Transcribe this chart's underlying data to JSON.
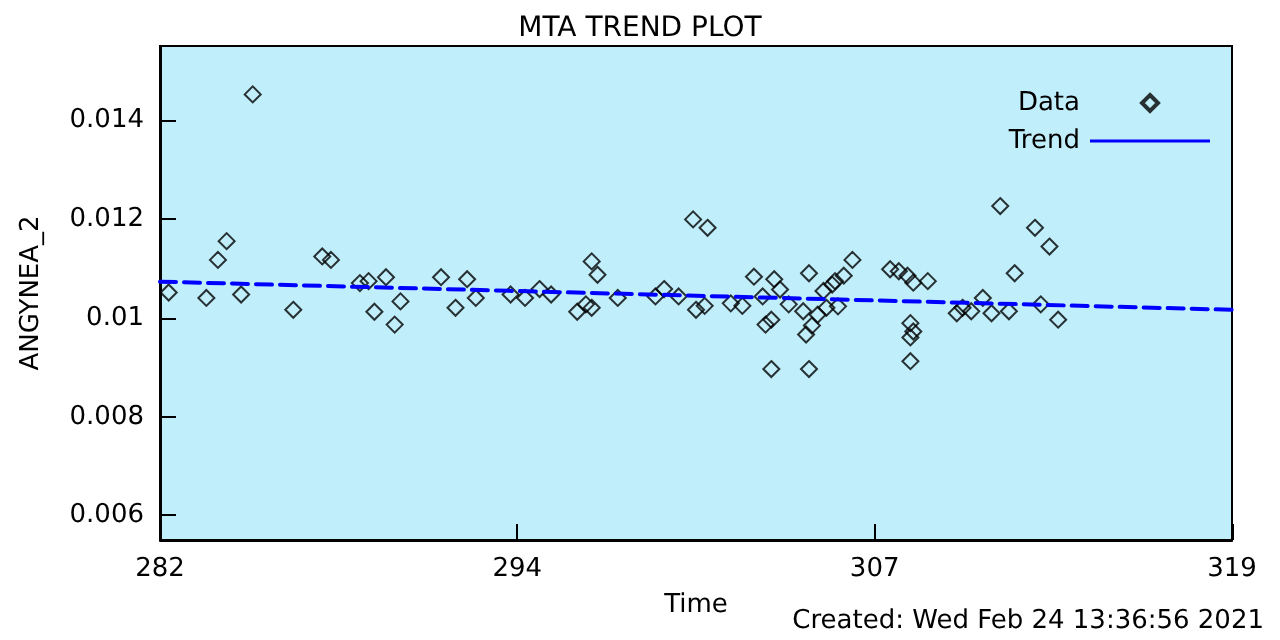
{
  "chart_data": {
    "type": "scatter",
    "title": "MTA TREND PLOT",
    "xlabel": "Time",
    "ylabel": "ANGYNEA_2",
    "annotations": [
      "Created: Wed Feb 24 13:36:56 2021"
    ],
    "xlim": [
      282,
      319
    ],
    "xticks": [
      282,
      {
        "value": 294.333,
        "label": "294"
      },
      {
        "value": 306.667,
        "label": "307"
      },
      319
    ],
    "ylim": [
      0.0055,
      0.0155
    ],
    "yticks": [
      0.006,
      0.008,
      0.01,
      0.012,
      0.014
    ],
    "legend": "top right",
    "grid": false,
    "series": [
      {
        "name": "Data",
        "marker": "diamond",
        "color": "#000000",
        "x": [
          282.3,
          283.6,
          284.0,
          284.3,
          284.8,
          285.2,
          286.6,
          287.6,
          287.9,
          288.9,
          289.2,
          289.4,
          289.8,
          290.1,
          290.3,
          291.7,
          292.2,
          292.6,
          292.9,
          294.1,
          294.6,
          295.1,
          295.5,
          296.4,
          296.7,
          296.9,
          297.1,
          296.9,
          297.8,
          299.1,
          299.4,
          299.9,
          300.4,
          300.5,
          300.8,
          300.9,
          301.7,
          302.1,
          302.5,
          302.8,
          302.9,
          303.1,
          303.1,
          303.2,
          303.4,
          303.7,
          304.2,
          304.4,
          304.3,
          304.4,
          304.5,
          304.7,
          304.9,
          305.0,
          305.2,
          305.4,
          305.3,
          305.6,
          305.9,
          307.2,
          307.5,
          307.8,
          308.0,
          308.5,
          307.9,
          307.9,
          308.0,
          307.9,
          309.5,
          309.7,
          310.0,
          310.4,
          310.7,
          311.0,
          311.3,
          311.5,
          312.2,
          312.4,
          312.7,
          313.0
        ],
        "values": [
          0.01051,
          0.0104,
          0.01117,
          0.01155,
          0.01047,
          0.01452,
          0.01016,
          0.01124,
          0.01117,
          0.0107,
          0.01074,
          0.01012,
          0.01082,
          0.00986,
          0.01033,
          0.01082,
          0.0102,
          0.01078,
          0.0104,
          0.01047,
          0.0104,
          0.01058,
          0.01047,
          0.01012,
          0.01027,
          0.01114,
          0.01087,
          0.0102,
          0.0104,
          0.01043,
          0.01058,
          0.01043,
          0.01199,
          0.01016,
          0.01024,
          0.01182,
          0.01029,
          0.01024,
          0.01083,
          0.01043,
          0.00986,
          0.00996,
          0.00896,
          0.01078,
          0.01057,
          0.01027,
          0.01013,
          0.0109,
          0.00966,
          0.00896,
          0.00984,
          0.01006,
          0.01054,
          0.0102,
          0.01067,
          0.01023,
          0.01074,
          0.01085,
          0.01117,
          0.01098,
          0.01094,
          0.01085,
          0.01071,
          0.01074,
          0.00989,
          0.0096,
          0.00972,
          0.00912,
          0.01009,
          0.0102,
          0.01013,
          0.0104,
          0.01009,
          0.01226,
          0.01013,
          0.0109,
          0.01182,
          0.01027,
          0.01144,
          0.00996
        ]
      },
      {
        "name": "Trend",
        "type": "line",
        "marker": "none",
        "line_style": "dashed",
        "color": "#0000ff",
        "x": [
          282,
          319
        ],
        "values": [
          0.01073,
          0.01016
        ]
      }
    ]
  }
}
